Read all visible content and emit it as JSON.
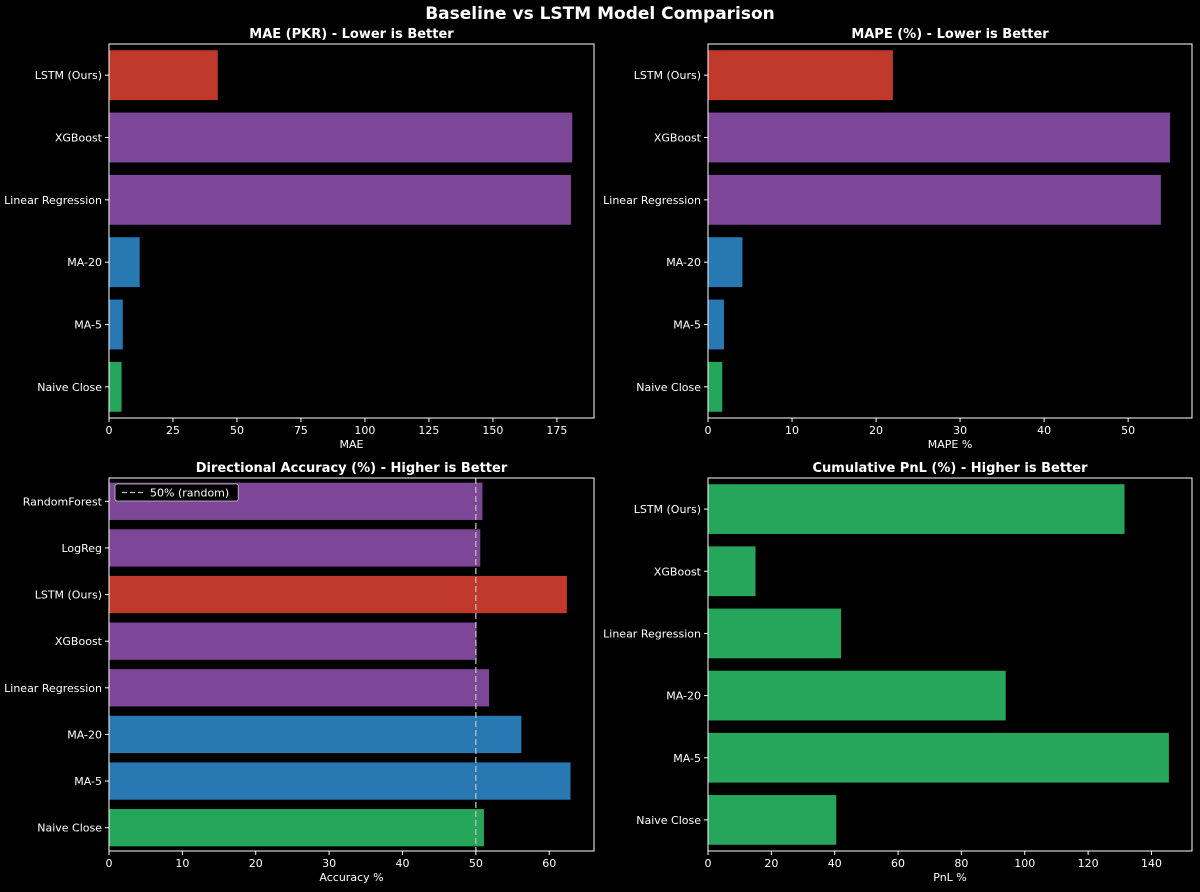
{
  "figure": {
    "title": "Baseline vs LSTM Model Comparison"
  },
  "colors": {
    "lstm": "#c0392b",
    "ml": "#7d4696",
    "ma": "#2878b4",
    "naive": "#26a65b",
    "pnl": "#26a65b",
    "axes": "#ffffff",
    "reference_line": "#bbbbbb"
  },
  "chart_data": [
    {
      "type": "bar",
      "orientation": "horizontal",
      "title": "MAE (PKR) - Lower is Better",
      "xlabel": "MAE",
      "categories": [
        "LSTM (Ours)",
        "XGBoost",
        "Linear Regression",
        "MA-20",
        "MA-5",
        "Naive Close"
      ],
      "values": [
        42.5,
        181,
        180.5,
        12,
        5.4,
        4.9
      ],
      "bar_colors": [
        "#c0392b",
        "#7d4696",
        "#7d4696",
        "#2878b4",
        "#2878b4",
        "#26a65b"
      ],
      "xlim": [
        0,
        189.5
      ],
      "xticks": [
        0,
        25,
        50,
        75,
        100,
        125,
        150,
        175
      ]
    },
    {
      "type": "bar",
      "orientation": "horizontal",
      "title": "MAPE (%) - Lower is Better",
      "xlabel": "MAPE %",
      "categories": [
        "LSTM (Ours)",
        "XGBoost",
        "Linear Regression",
        "MA-20",
        "MA-5",
        "Naive Close"
      ],
      "values": [
        22,
        55,
        53.9,
        4.1,
        1.9,
        1.7
      ],
      "bar_colors": [
        "#c0392b",
        "#7d4696",
        "#7d4696",
        "#2878b4",
        "#2878b4",
        "#26a65b"
      ],
      "xlim": [
        0,
        57.6
      ],
      "xticks": [
        0,
        10,
        20,
        30,
        40,
        50
      ]
    },
    {
      "type": "bar",
      "orientation": "horizontal",
      "title": "Directional Accuracy (%) - Higher is Better",
      "xlabel": "Accuracy %",
      "categories": [
        "RandomForest",
        "LogReg",
        "LSTM (Ours)",
        "XGBoost",
        "Linear Regression",
        "MA-20",
        "MA-5",
        "Naive Close"
      ],
      "values": [
        50.9,
        50.6,
        62.4,
        50.1,
        51.8,
        56.2,
        62.9,
        51.1
      ],
      "bar_colors": [
        "#7d4696",
        "#7d4696",
        "#c0392b",
        "#7d4696",
        "#7d4696",
        "#2878b4",
        "#2878b4",
        "#26a65b"
      ],
      "xlim": [
        0,
        66.1
      ],
      "xticks": [
        0,
        10,
        20,
        30,
        40,
        50,
        60
      ],
      "reference_line": {
        "x": 50,
        "style": "dashed"
      },
      "legend": {
        "entries": [
          "50% (random)"
        ],
        "position": "upper-left"
      }
    },
    {
      "type": "bar",
      "orientation": "horizontal",
      "title": "Cumulative PnL (%) - Higher is Better",
      "xlabel": "PnL %",
      "categories": [
        "LSTM (Ours)",
        "XGBoost",
        "Linear Regression",
        "MA-20",
        "MA-5",
        "Naive Close"
      ],
      "values": [
        131.5,
        15,
        42,
        94,
        145.5,
        40.5
      ],
      "bar_colors": [
        "#26a65b",
        "#26a65b",
        "#26a65b",
        "#26a65b",
        "#26a65b",
        "#26a65b"
      ],
      "xlim": [
        0,
        152.8
      ],
      "xticks": [
        0,
        20,
        40,
        60,
        80,
        100,
        120,
        140
      ]
    }
  ]
}
